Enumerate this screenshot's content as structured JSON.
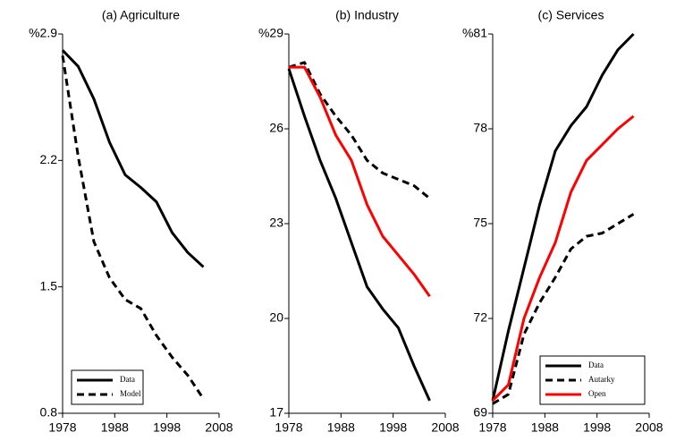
{
  "chart_data": [
    {
      "type": "line",
      "title": "(a) Agriculture",
      "x": [
        1978,
        1981,
        1984,
        1987,
        1990,
        1993,
        1996,
        1999,
        2002,
        2005
      ],
      "series": [
        {
          "name": "Data",
          "color": "#000000",
          "style": "solid",
          "values": [
            2.81,
            2.72,
            2.54,
            2.3,
            2.12,
            2.05,
            1.97,
            1.8,
            1.69,
            1.61
          ]
        },
        {
          "name": "Model",
          "color": "#000000",
          "style": "dashed",
          "values": [
            2.78,
            2.22,
            1.75,
            1.55,
            1.43,
            1.38,
            1.23,
            1.11,
            1.01,
            0.88
          ]
        }
      ],
      "xlim": [
        1978,
        2008
      ],
      "xticks": [
        1978,
        1988,
        1998,
        2008
      ],
      "ylim": [
        0.8,
        2.9
      ],
      "yticks": [
        0.8,
        1.5,
        2.2,
        {
          "value": 2.9,
          "label": "%2.9"
        }
      ],
      "legend": "lower left"
    },
    {
      "type": "line",
      "title": "(b) Industry",
      "x": [
        1978,
        1981,
        1984,
        1987,
        1990,
        1993,
        1996,
        1999,
        2002,
        2005
      ],
      "series": [
        {
          "name": "Data",
          "color": "#000000",
          "style": "solid",
          "values": [
            27.9,
            26.4,
            25.0,
            23.8,
            22.4,
            21.0,
            20.3,
            19.7,
            18.5,
            17.4
          ]
        },
        {
          "name": "Autarky",
          "color": "#000000",
          "style": "dashed",
          "values": [
            27.95,
            28.1,
            27.1,
            26.4,
            25.8,
            25.0,
            24.6,
            24.4,
            24.2,
            23.8
          ]
        },
        {
          "name": "Open",
          "color": "#ff0000",
          "style": "solid",
          "values": [
            27.95,
            27.95,
            27.0,
            25.8,
            25.0,
            23.6,
            22.6,
            22.0,
            21.4,
            20.7
          ]
        }
      ],
      "xlim": [
        1978,
        2008
      ],
      "xticks": [
        1978,
        1988,
        1998,
        2008
      ],
      "ylim": [
        17,
        29
      ],
      "yticks": [
        17,
        20,
        23,
        26,
        {
          "value": 29,
          "label": "%29"
        }
      ]
    },
    {
      "type": "line",
      "title": "(c) Services",
      "x": [
        1978,
        1981,
        1984,
        1987,
        1990,
        1993,
        1996,
        1999,
        2002,
        2005
      ],
      "series": [
        {
          "name": "Data",
          "color": "#000000",
          "style": "solid",
          "values": [
            69.4,
            71.6,
            73.6,
            75.6,
            77.3,
            78.1,
            78.7,
            79.7,
            80.5,
            81.0
          ]
        },
        {
          "name": "Autarky",
          "color": "#000000",
          "style": "dashed",
          "values": [
            69.3,
            69.6,
            71.5,
            72.5,
            73.3,
            74.2,
            74.6,
            74.7,
            75.0,
            75.3
          ]
        },
        {
          "name": "Open",
          "color": "#ff0000",
          "style": "solid",
          "values": [
            69.4,
            69.9,
            72.0,
            73.3,
            74.4,
            76.0,
            77.0,
            77.5,
            78.0,
            78.4
          ]
        }
      ],
      "xlim": [
        1978,
        2008
      ],
      "xticks": [
        1978,
        1988,
        1998,
        2008
      ],
      "ylim": [
        69,
        81
      ],
      "yticks": [
        69,
        72,
        75,
        78,
        {
          "value": 81,
          "label": "%81"
        }
      ],
      "legend": "lower right"
    }
  ]
}
